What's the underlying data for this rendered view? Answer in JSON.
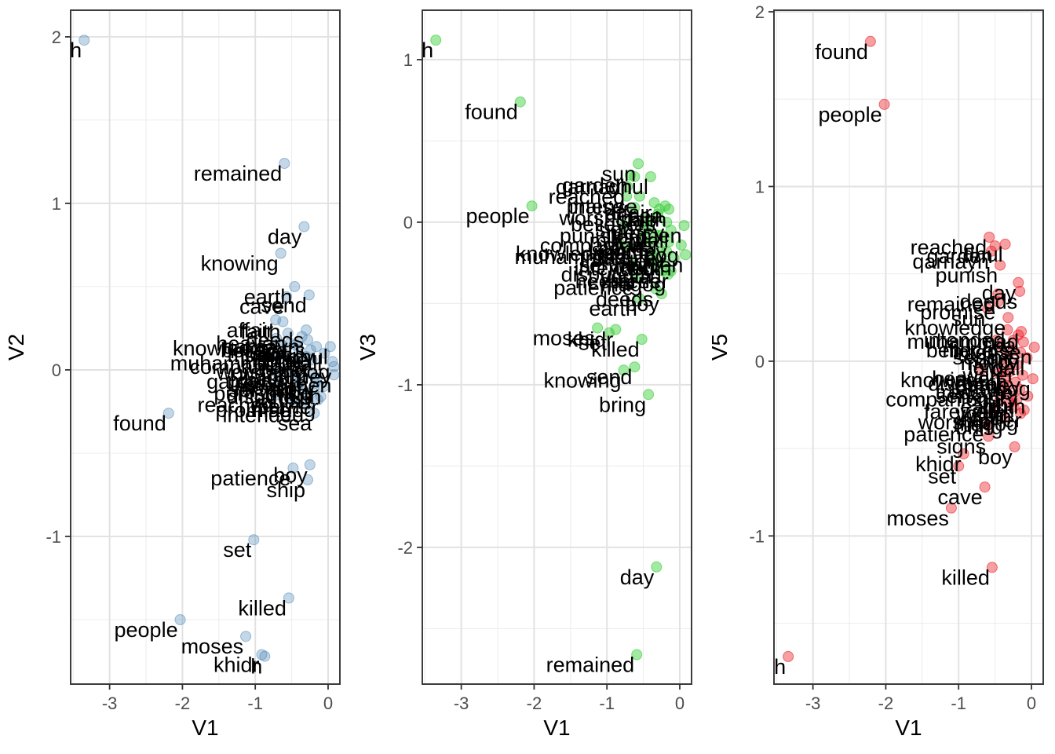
{
  "figure_description": "Three scatter panels of word embeddings plotted against V1 on the x-axis",
  "styles": {
    "background": "#ffffff",
    "grid_major": "#e2e2e2",
    "grid_minor": "#ececec",
    "panel_border": "#3c3c3c",
    "tick_mark": "#333333",
    "tick_label_color": "#4d4d4d",
    "word_label_color": "#000000",
    "axis_title_color": "#000000"
  },
  "chart_data": [
    {
      "id": "v2",
      "type": "scatter",
      "xlabel": "V1",
      "ylabel": "V2",
      "xlim": [
        -3.535,
        0.162
      ],
      "ylim": [
        -1.887,
        2.16
      ],
      "xticks": [
        -3,
        -2,
        -1,
        0
      ],
      "yticks": [
        -1,
        0,
        1,
        2
      ],
      "point_color": "#4682B4",
      "point_alpha": 0.32,
      "stroke_alpha": 0.5,
      "points": [
        {
          "w": "h",
          "x": -3.35,
          "y": 1.98
        },
        {
          "w": "remained",
          "x": -0.6,
          "y": 1.24
        },
        {
          "w": "day",
          "x": -0.33,
          "y": 0.86
        },
        {
          "w": "knowing",
          "x": -0.65,
          "y": 0.7
        },
        {
          "w": "earth",
          "x": -0.46,
          "y": 0.5
        },
        {
          "w": "send",
          "x": -0.26,
          "y": 0.45
        },
        {
          "w": "cave",
          "x": -0.57,
          "y": 0.44
        },
        {
          "w": "affair",
          "x": -0.72,
          "y": 0.3
        },
        {
          "w": "faith",
          "x": -0.62,
          "y": 0.29
        },
        {
          "w": "deeds",
          "x": -0.3,
          "y": 0.24
        },
        {
          "w": "heaven",
          "x": -0.55,
          "y": 0.22
        },
        {
          "w": "knowledge",
          "x": -0.71,
          "y": 0.19
        },
        {
          "w": "muhammad",
          "x": -0.6,
          "y": 0.1
        },
        {
          "w": "garden",
          "x": -0.73,
          "y": -0.01
        },
        {
          "w": "punish",
          "x": -0.68,
          "y": -0.08
        },
        {
          "w": "reached",
          "x": -0.71,
          "y": -0.15
        },
        {
          "w": "intended",
          "x": -0.3,
          "y": -0.21
        },
        {
          "w": "sea",
          "x": -0.19,
          "y": -0.26
        },
        {
          "w": "found",
          "x": -2.19,
          "y": -0.26
        },
        {
          "w": "patience",
          "x": -0.48,
          "y": -0.59
        },
        {
          "w": "boy",
          "x": -0.25,
          "y": -0.57
        },
        {
          "w": "ship",
          "x": -0.28,
          "y": -0.66
        },
        {
          "w": "set",
          "x": -1.02,
          "y": -1.02
        },
        {
          "w": "killed",
          "x": -0.54,
          "y": -1.37
        },
        {
          "w": "people",
          "x": -2.03,
          "y": -1.5
        },
        {
          "w": "moses",
          "x": -1.13,
          "y": -1.6
        },
        {
          "w": "khidr",
          "x": -0.91,
          "y": -1.71
        },
        {
          "w": "h",
          "x": -0.87,
          "y": -1.72
        },
        {
          "w": "believers",
          "x": -0.28,
          "y": 0.18
        },
        {
          "w": "mercy",
          "x": -0.16,
          "y": 0.14
        },
        {
          "w": "lord",
          "x": -0.4,
          "y": 0.12
        },
        {
          "w": "water",
          "x": -0.22,
          "y": 0.06
        },
        {
          "w": "wealth",
          "x": -0.35,
          "y": 0.04
        },
        {
          "w": "wall",
          "x": -0.05,
          "y": 0.1
        },
        {
          "w": "treasure",
          "x": -0.25,
          "y": -0.02
        },
        {
          "w": "journey",
          "x": 0.08,
          "y": 0.02
        },
        {
          "w": "servant",
          "x": -0.38,
          "y": -0.06
        },
        {
          "w": "story",
          "x": -0.15,
          "y": -0.05
        },
        {
          "w": "truth",
          "x": -0.06,
          "y": -0.1
        },
        {
          "w": "fish",
          "x": -0.2,
          "y": -0.12
        },
        {
          "w": "youth",
          "x": -0.33,
          "y": -0.13
        },
        {
          "w": "barrier",
          "x": -0.1,
          "y": -0.16
        },
        {
          "w": "gog",
          "x": 0.06,
          "y": 0.05
        },
        {
          "w": "magog",
          "x": -0.14,
          "y": -0.18
        },
        {
          "w": "companions",
          "x": -0.3,
          "y": 0.08
        },
        {
          "w": "men",
          "x": 0.08,
          "y": -0.03
        },
        {
          "w": "signs",
          "x": -0.45,
          "y": 0.15
        },
        {
          "w": "worship",
          "x": -0.5,
          "y": 0.05
        },
        {
          "w": "dispute",
          "x": -0.42,
          "y": -0.1
        },
        {
          "w": "promise",
          "x": -0.48,
          "y": -0.18
        },
        {
          "w": "sun",
          "x": -0.52,
          "y": 0.16
        },
        {
          "w": "intense",
          "x": -0.24,
          "y": 0.12
        },
        {
          "w": "bring",
          "x": -0.18,
          "y": -0.08
        },
        {
          "w": "dhul",
          "x": 0.03,
          "y": 0.14
        },
        {
          "w": "qarnayn",
          "x": -0.36,
          "y": 0.2
        },
        {
          "w": "mount",
          "x": -0.44,
          "y": -0.04
        },
        {
          "w": "praise",
          "x": -0.56,
          "y": 0.0
        },
        {
          "w": "much",
          "x": -0.64,
          "y": 0.15
        }
      ]
    },
    {
      "id": "v3",
      "type": "scatter",
      "xlabel": "V1",
      "ylabel": "V3",
      "xlim": [
        -3.535,
        0.162
      ],
      "ylim": [
        -2.841,
        1.304
      ],
      "xticks": [
        -3,
        -2,
        -1,
        0
      ],
      "yticks": [
        -2,
        -1,
        0,
        1
      ],
      "point_color": "#32CD32",
      "point_alpha": 0.45,
      "stroke_alpha": 0.6,
      "points": [
        {
          "w": "h",
          "x": -3.35,
          "y": 1.12
        },
        {
          "w": "found",
          "x": -2.19,
          "y": 0.74
        },
        {
          "w": "people",
          "x": -2.03,
          "y": 0.1
        },
        {
          "w": "sun",
          "x": -0.57,
          "y": 0.36
        },
        {
          "w": "qarnayn",
          "x": -0.62,
          "y": 0.28
        },
        {
          "w": "dhul",
          "x": -0.4,
          "y": 0.28
        },
        {
          "w": "garden",
          "x": -0.68,
          "y": 0.29
        },
        {
          "w": "reached",
          "x": -0.72,
          "y": 0.22
        },
        {
          "w": "praise",
          "x": -0.73,
          "y": 0.16
        },
        {
          "w": "intense",
          "x": -0.55,
          "y": 0.16
        },
        {
          "w": "worship",
          "x": -0.62,
          "y": 0.09
        },
        {
          "w": "punish",
          "x": -0.76,
          "y": -0.02
        },
        {
          "w": "muhammad",
          "x": -0.7,
          "y": -0.15
        },
        {
          "w": "knowledge",
          "x": -0.83,
          "y": -0.13
        },
        {
          "w": "dispute",
          "x": -0.66,
          "y": -0.26
        },
        {
          "w": "patience",
          "x": -0.6,
          "y": -0.34
        },
        {
          "w": "deeds",
          "x": -0.33,
          "y": -0.41
        },
        {
          "w": "earth",
          "x": -0.55,
          "y": -0.47
        },
        {
          "w": "boy",
          "x": -0.25,
          "y": -0.44
        },
        {
          "w": "moses",
          "x": -1.13,
          "y": -0.65
        },
        {
          "w": "set",
          "x": -0.97,
          "y": -0.68
        },
        {
          "w": "khidr",
          "x": -0.88,
          "y": -0.66
        },
        {
          "w": "killed",
          "x": -0.52,
          "y": -0.72
        },
        {
          "w": "knowing",
          "x": -0.77,
          "y": -0.91
        },
        {
          "w": "send",
          "x": -0.62,
          "y": -0.89
        },
        {
          "w": "bring",
          "x": -0.43,
          "y": -1.06
        },
        {
          "w": "day",
          "x": -0.32,
          "y": -2.12
        },
        {
          "w": "remained",
          "x": -0.59,
          "y": -2.66
        },
        {
          "w": "believers",
          "x": -0.3,
          "y": 0.05
        },
        {
          "w": "mercy",
          "x": -0.18,
          "y": 0.0
        },
        {
          "w": "lord",
          "x": -0.42,
          "y": -0.03
        },
        {
          "w": "water",
          "x": -0.25,
          "y": -0.08
        },
        {
          "w": "wealth",
          "x": -0.38,
          "y": -0.12
        },
        {
          "w": "wall",
          "x": -0.12,
          "y": -0.05
        },
        {
          "w": "treasure",
          "x": -0.28,
          "y": -0.16
        },
        {
          "w": "journey",
          "x": -0.15,
          "y": -0.12
        },
        {
          "w": "servant",
          "x": -0.4,
          "y": -0.2
        },
        {
          "w": "story",
          "x": -0.18,
          "y": -0.18
        },
        {
          "w": "truth",
          "x": -0.08,
          "y": -0.22
        },
        {
          "w": "fish",
          "x": -0.22,
          "y": -0.25
        },
        {
          "w": "youth",
          "x": -0.35,
          "y": -0.27
        },
        {
          "w": "barrier",
          "x": -0.12,
          "y": -0.3
        },
        {
          "w": "gog",
          "x": 0.02,
          "y": -0.14
        },
        {
          "w": "magog",
          "x": -0.16,
          "y": -0.32
        },
        {
          "w": "companions",
          "x": -0.32,
          "y": -0.08
        },
        {
          "w": "men",
          "x": 0.06,
          "y": -0.02
        },
        {
          "w": "signs",
          "x": -0.45,
          "y": 0.02
        },
        {
          "w": "ship",
          "x": -0.28,
          "y": 0.08
        },
        {
          "w": "sea",
          "x": -0.2,
          "y": 0.1
        },
        {
          "w": "affair",
          "x": -0.35,
          "y": 0.12
        },
        {
          "w": "faith",
          "x": -0.15,
          "y": 0.08
        },
        {
          "w": "heedless",
          "x": -0.24,
          "y": -0.3
        },
        {
          "w": "cave",
          "x": -0.47,
          "y": -0.1
        },
        {
          "w": "intended",
          "x": -0.3,
          "y": -0.22
        },
        {
          "w": "much",
          "x": -0.5,
          "y": -0.05
        },
        {
          "w": "heaven",
          "x": 0.08,
          "y": -0.2
        }
      ]
    },
    {
      "id": "v5",
      "type": "scatter",
      "xlabel": "V1",
      "ylabel": "V5",
      "xlim": [
        -3.535,
        0.162
      ],
      "ylim": [
        -1.848,
        2.009
      ],
      "xticks": [
        -3,
        -2,
        -1,
        0
      ],
      "yticks": [
        -1,
        0,
        1,
        2
      ],
      "point_color": "#ED1C24",
      "point_alpha": 0.42,
      "stroke_alpha": 0.6,
      "points": [
        {
          "w": "found",
          "x": -2.21,
          "y": 1.83
        },
        {
          "w": "people",
          "x": -2.02,
          "y": 1.47
        },
        {
          "w": "h",
          "x": -3.34,
          "y": -1.69
        },
        {
          "w": "reached",
          "x": -0.58,
          "y": 0.71
        },
        {
          "w": "garden",
          "x": -0.5,
          "y": 0.66
        },
        {
          "w": "dhul",
          "x": -0.36,
          "y": 0.67
        },
        {
          "w": "qarnayn",
          "x": -0.55,
          "y": 0.63
        },
        {
          "w": "punish",
          "x": -0.43,
          "y": 0.55
        },
        {
          "w": "day",
          "x": -0.18,
          "y": 0.45
        },
        {
          "w": "deeds",
          "x": -0.16,
          "y": 0.4
        },
        {
          "w": "remained",
          "x": -0.46,
          "y": 0.385
        },
        {
          "w": "promise",
          "x": -0.46,
          "y": 0.34
        },
        {
          "w": "sun",
          "x": -0.6,
          "y": 0.3
        },
        {
          "w": "knowledge",
          "x": -0.32,
          "y": 0.25
        },
        {
          "w": "muhammad",
          "x": -0.14,
          "y": 0.17
        },
        {
          "w": "intense",
          "x": -0.11,
          "y": 0.11
        },
        {
          "w": "knowing",
          "x": -0.7,
          "y": -0.05
        },
        {
          "w": "dispute",
          "x": -0.45,
          "y": -0.07
        },
        {
          "w": "companions",
          "x": -0.4,
          "y": -0.16
        },
        {
          "w": "farewell",
          "x": -0.44,
          "y": -0.23
        },
        {
          "w": "worship",
          "x": -0.52,
          "y": -0.29
        },
        {
          "w": "patience",
          "x": -0.62,
          "y": -0.36
        },
        {
          "w": "signs",
          "x": -0.59,
          "y": -0.43
        },
        {
          "w": "khidr",
          "x": -0.93,
          "y": -0.53
        },
        {
          "w": "boy",
          "x": -0.23,
          "y": -0.49
        },
        {
          "w": "set",
          "x": -1.0,
          "y": -0.6
        },
        {
          "w": "cave",
          "x": -0.64,
          "y": -0.72
        },
        {
          "w": "moses",
          "x": -1.1,
          "y": -0.84
        },
        {
          "w": "killed",
          "x": -0.54,
          "y": -1.18
        },
        {
          "w": "believers",
          "x": -0.25,
          "y": 0.12
        },
        {
          "w": "mercy",
          "x": -0.15,
          "y": 0.05
        },
        {
          "w": "lord",
          "x": -0.35,
          "y": 0.02
        },
        {
          "w": "water",
          "x": -0.2,
          "y": -0.02
        },
        {
          "w": "wealth",
          "x": -0.3,
          "y": -0.06
        },
        {
          "w": "wall",
          "x": -0.06,
          "y": 0.02
        },
        {
          "w": "treasure",
          "x": -0.22,
          "y": -0.12
        },
        {
          "w": "journey",
          "x": -0.12,
          "y": -0.08
        },
        {
          "w": "servant",
          "x": -0.33,
          "y": -0.14
        },
        {
          "w": "story",
          "x": -0.16,
          "y": -0.16
        },
        {
          "w": "truth",
          "x": -0.05,
          "y": -0.2
        },
        {
          "w": "fish",
          "x": -0.2,
          "y": -0.22
        },
        {
          "w": "youth",
          "x": -0.3,
          "y": -0.24
        },
        {
          "w": "barrier",
          "x": -0.1,
          "y": -0.28
        },
        {
          "w": "gog",
          "x": 0.02,
          "y": -0.1
        },
        {
          "w": "magog",
          "x": -0.15,
          "y": -0.3
        },
        {
          "w": "men",
          "x": 0.04,
          "y": 0.08
        },
        {
          "w": "ship",
          "x": -0.25,
          "y": 0.06
        },
        {
          "w": "sea",
          "x": -0.18,
          "y": 0.15
        },
        {
          "w": "earth",
          "x": -0.28,
          "y": -0.2
        },
        {
          "w": "affair",
          "x": -0.35,
          "y": -0.1
        },
        {
          "w": "faith",
          "x": -0.24,
          "y": -0.26
        },
        {
          "w": "heaven",
          "x": -0.38,
          "y": -0.04
        },
        {
          "w": "send",
          "x": -0.42,
          "y": 0.08
        },
        {
          "w": "bring",
          "x": -0.36,
          "y": -0.32
        },
        {
          "w": "much",
          "x": -0.48,
          "y": 0.12
        },
        {
          "w": "intended",
          "x": -0.33,
          "y": 0.18
        }
      ]
    }
  ]
}
